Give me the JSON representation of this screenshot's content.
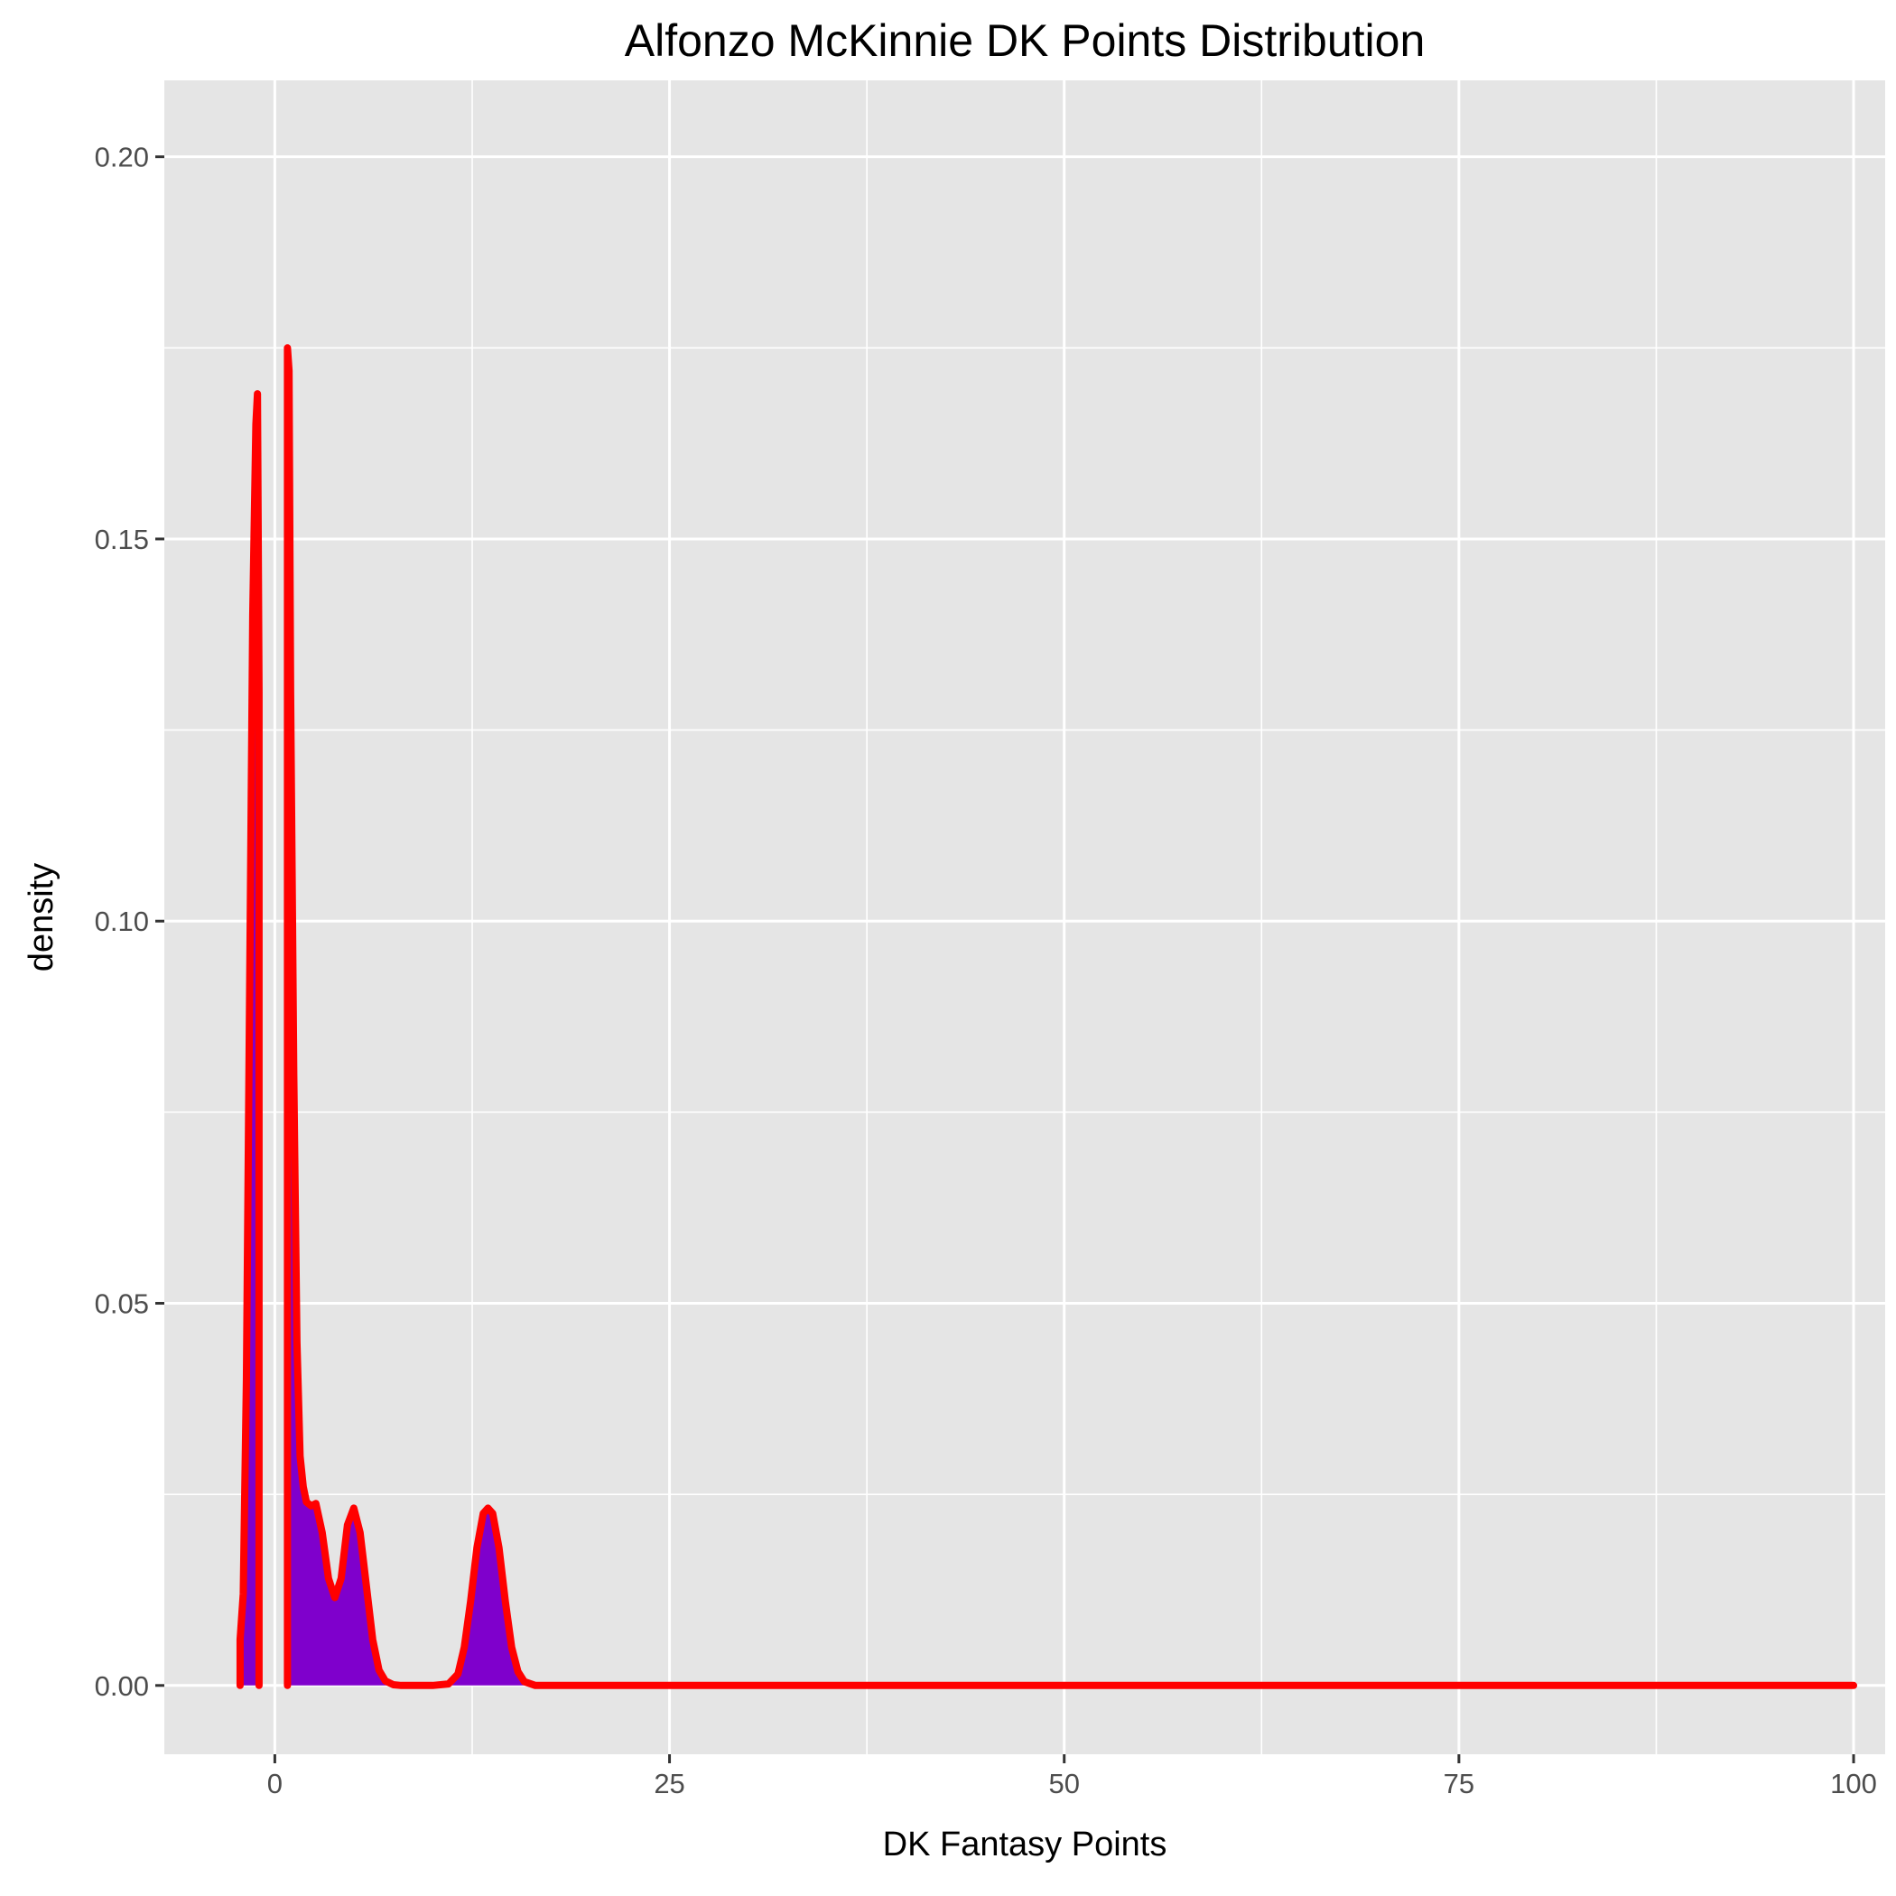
{
  "chart_data": {
    "type": "area",
    "title": "Alfonzo McKinnie DK Points Distribution",
    "xlabel": "DK Fantasy Points",
    "ylabel": "density",
    "xlim": [
      -7,
      102
    ],
    "ylim": [
      -0.009,
      0.21
    ],
    "x_ticks": [
      0,
      25,
      50,
      75,
      100
    ],
    "y_ticks": [
      0.0,
      0.05,
      0.1,
      0.15,
      0.2
    ],
    "x_tick_labels": [
      "0",
      "25",
      "50",
      "75",
      "100"
    ],
    "y_tick_labels": [
      "0.00",
      "0.05",
      "0.10",
      "0.15",
      "0.20"
    ],
    "grid": true,
    "legend": "none",
    "colors": {
      "panel": "#e5e5e5",
      "grid": "#ffffff",
      "fill": "#7f00cc",
      "line": "#ff0000"
    },
    "series": [
      {
        "segments": [
          {
            "x": [
              -2.2,
              -2.2,
              -2.0,
              -1.8,
              -1.6,
              -1.4,
              -1.2,
              -1.1,
              -1.0,
              -1.0
            ],
            "y": [
              0.0,
              0.006,
              0.012,
              0.04,
              0.09,
              0.14,
              0.165,
              0.169,
              0.13,
              0.0
            ]
          },
          {
            "x": [
              0.8,
              0.8,
              0.9,
              1.0,
              1.2,
              1.4,
              1.6,
              1.8,
              2.0,
              2.3,
              2.6,
              3.0,
              3.4,
              3.8,
              4.2,
              4.6,
              5.0,
              5.4,
              5.8,
              6.2,
              6.6,
              7.0,
              7.5,
              8.0,
              9.0,
              10.0,
              11.0,
              11.6,
              12.0,
              12.4,
              12.8,
              13.2,
              13.5,
              13.8,
              14.2,
              14.6,
              15.0,
              15.4,
              15.8,
              16.5,
              17.5,
              20.0,
              30.0,
              50.0,
              75.0,
              100.0
            ],
            "y": [
              0.0,
              0.175,
              0.172,
              0.13,
              0.08,
              0.045,
              0.03,
              0.026,
              0.024,
              0.0235,
              0.0238,
              0.02,
              0.014,
              0.0115,
              0.014,
              0.021,
              0.0232,
              0.02,
              0.013,
              0.006,
              0.002,
              0.0006,
              0.0001,
              0.0,
              0.0,
              0.0,
              0.0002,
              0.0015,
              0.005,
              0.011,
              0.018,
              0.0225,
              0.0232,
              0.0225,
              0.018,
              0.011,
              0.005,
              0.0018,
              0.0005,
              0.0,
              0.0,
              0.0,
              0.0,
              0.0,
              0.0,
              0.0
            ]
          }
        ]
      }
    ]
  }
}
